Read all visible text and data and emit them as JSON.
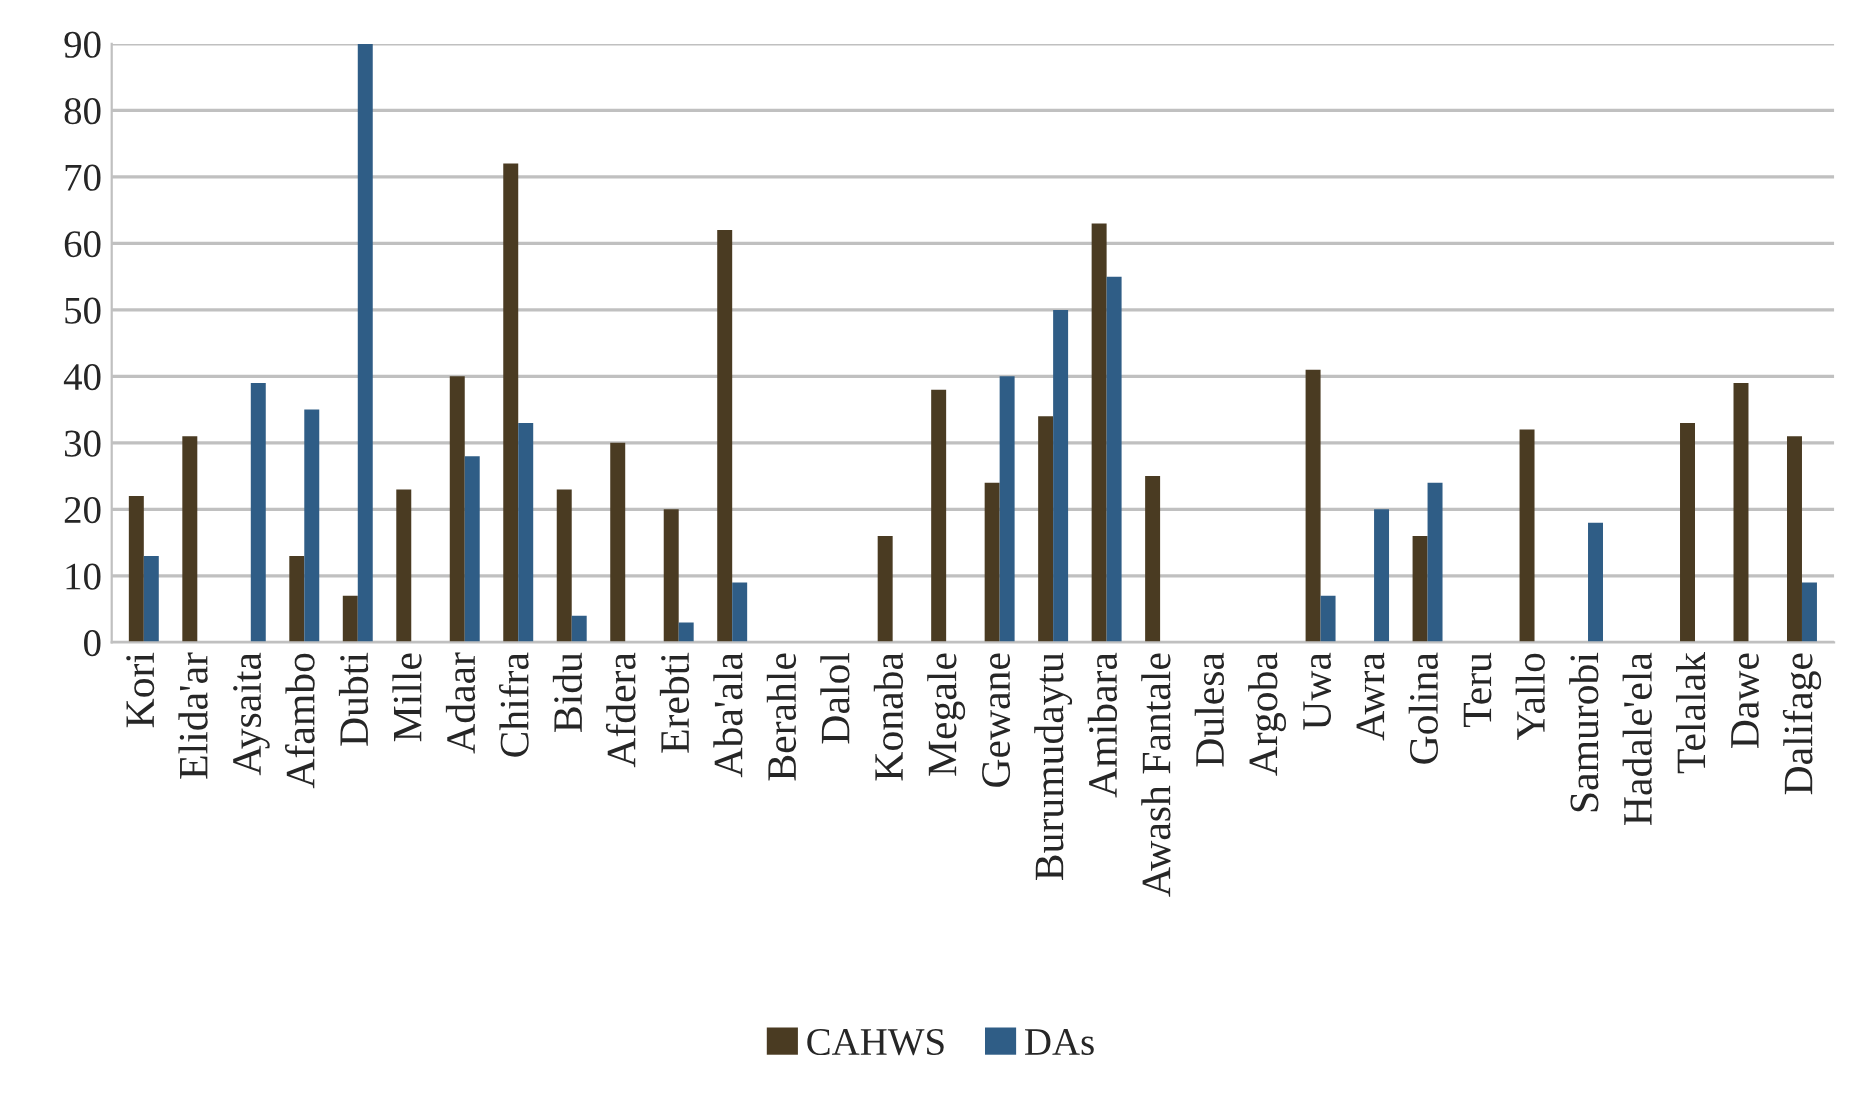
{
  "chart_data": {
    "type": "bar",
    "categories": [
      "Kori",
      "Elida'ar",
      "Aysaita",
      "Afambo",
      "Dubti",
      "Mille",
      "Adaar",
      "Chifra",
      "Bidu",
      "Afdera",
      "Erebti",
      "Aba'ala",
      "Berahle",
      "Dalol",
      "Konaba",
      "Megale",
      "Gewane",
      "Burumudaytu",
      "Amibara",
      "Awash Fantale",
      "Dulesa",
      "Argoba",
      "Uwa",
      "Awra",
      "Golina",
      "Teru",
      "Yallo",
      "Samurobi",
      "Hadale'ela",
      "Telalak",
      "Dawe",
      "Dalifage"
    ],
    "series": [
      {
        "name": "CAHWS",
        "color": "#4a3b22",
        "values": [
          22,
          31,
          null,
          13,
          7,
          23,
          40,
          72,
          23,
          30,
          20,
          62,
          null,
          null,
          16,
          38,
          24,
          34,
          63,
          25,
          null,
          null,
          41,
          null,
          16,
          null,
          32,
          null,
          null,
          33,
          39,
          31
        ]
      },
      {
        "name": "DAs",
        "color": "#2f5d86",
        "values": [
          13,
          null,
          39,
          35,
          90,
          null,
          28,
          33,
          4,
          null,
          3,
          9,
          null,
          null,
          null,
          null,
          40,
          50,
          55,
          null,
          null,
          null,
          7,
          20,
          24,
          null,
          null,
          18,
          null,
          null,
          null,
          9
        ]
      }
    ],
    "ylim": [
      0,
      90
    ],
    "yticks": [
      0,
      10,
      20,
      30,
      40,
      50,
      60,
      70,
      80,
      90
    ],
    "grid": "y",
    "legend": "bottom"
  }
}
